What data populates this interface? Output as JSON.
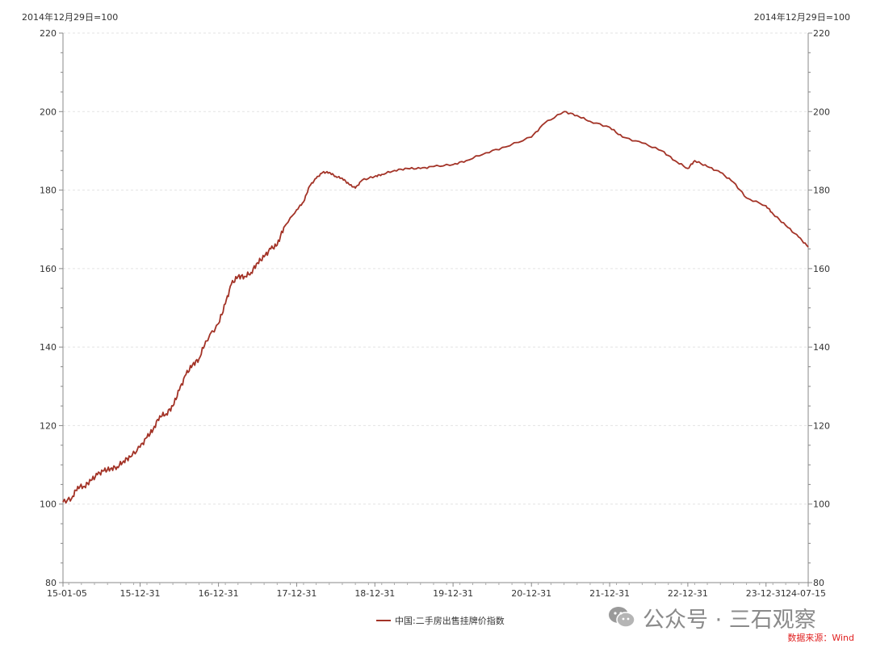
{
  "header": {
    "left_note": "2014年12月29日=100",
    "right_note": "2014年12月29日=100"
  },
  "legend": {
    "label": "中国:二手房出售挂牌价指数"
  },
  "watermark": {
    "text": "公众号 · 三石观察"
  },
  "source": {
    "text": "数据来源：Wind"
  },
  "colors": {
    "line": "#a33327",
    "source": "#e02020",
    "grid": "#e3e3e3",
    "axis": "#888888"
  },
  "chart_data": {
    "type": "line",
    "title": "",
    "xlabel": "",
    "ylabel": "",
    "ylim": [
      80,
      220
    ],
    "yticks": [
      80,
      100,
      120,
      140,
      160,
      180,
      200,
      220
    ],
    "xticks": [
      "15-01-05",
      "15-12-31",
      "16-12-31",
      "17-12-31",
      "18-12-31",
      "19-12-31",
      "20-12-31",
      "21-12-31",
      "22-12-31",
      "23-12-31",
      "24-07-15"
    ],
    "xlim": [
      "2015-01-05",
      "2024-07-15"
    ],
    "grid": true,
    "legend_position": "bottom-center",
    "series": [
      {
        "name": "中国:二手房出售挂牌价指数",
        "color": "#a33327",
        "x": [
          "2015-01-05",
          "2015-02-15",
          "2015-03-15",
          "2015-04-15",
          "2015-05-15",
          "2015-06-15",
          "2015-07-15",
          "2015-08-15",
          "2015-09-15",
          "2015-10-15",
          "2015-11-15",
          "2015-12-31",
          "2016-02-01",
          "2016-03-01",
          "2016-04-01",
          "2016-05-01",
          "2016-06-01",
          "2016-07-01",
          "2016-08-01",
          "2016-09-01",
          "2016-10-01",
          "2016-11-01",
          "2016-12-31",
          "2017-02-01",
          "2017-03-01",
          "2017-04-01",
          "2017-05-01",
          "2017-06-01",
          "2017-07-01",
          "2017-08-01",
          "2017-09-01",
          "2017-10-01",
          "2017-11-01",
          "2017-12-31",
          "2018-02-01",
          "2018-03-01",
          "2018-04-01",
          "2018-05-01",
          "2018-06-01",
          "2018-07-01",
          "2018-08-01",
          "2018-09-01",
          "2018-10-01",
          "2018-11-01",
          "2018-12-31",
          "2019-02-01",
          "2019-04-01",
          "2019-06-01",
          "2019-08-01",
          "2019-10-01",
          "2019-12-31",
          "2020-03-01",
          "2020-06-01",
          "2020-09-01",
          "2020-12-31",
          "2021-03-01",
          "2021-06-01",
          "2021-08-01",
          "2021-10-01",
          "2021-12-31",
          "2022-03-01",
          "2022-06-01",
          "2022-09-01",
          "2022-11-01",
          "2022-12-31",
          "2023-02-01",
          "2023-04-01",
          "2023-06-01",
          "2023-08-01",
          "2023-10-01",
          "2023-12-31",
          "2024-02-01",
          "2024-04-01",
          "2024-06-01",
          "2024-07-15"
        ],
        "values": [
          100.5,
          101.5,
          104.5,
          104.5,
          106,
          107.5,
          108.5,
          109,
          109.5,
          111,
          112,
          114.5,
          117,
          119,
          122.5,
          123,
          125,
          129,
          133,
          135.5,
          137,
          141.5,
          146,
          151,
          156,
          158,
          158,
          159,
          161.5,
          163,
          165,
          166,
          170.5,
          175,
          177,
          181,
          183,
          184.5,
          184.5,
          183.5,
          183,
          181.5,
          180.5,
          182.5,
          183.5,
          184,
          185,
          185.5,
          185.5,
          186,
          186.5,
          187.5,
          189.5,
          191,
          193.5,
          197,
          200,
          199,
          197.5,
          196,
          193.5,
          192,
          190,
          187.5,
          185.5,
          187.5,
          186,
          184.5,
          182,
          178,
          176,
          174,
          171,
          168,
          165.5
        ]
      }
    ]
  }
}
